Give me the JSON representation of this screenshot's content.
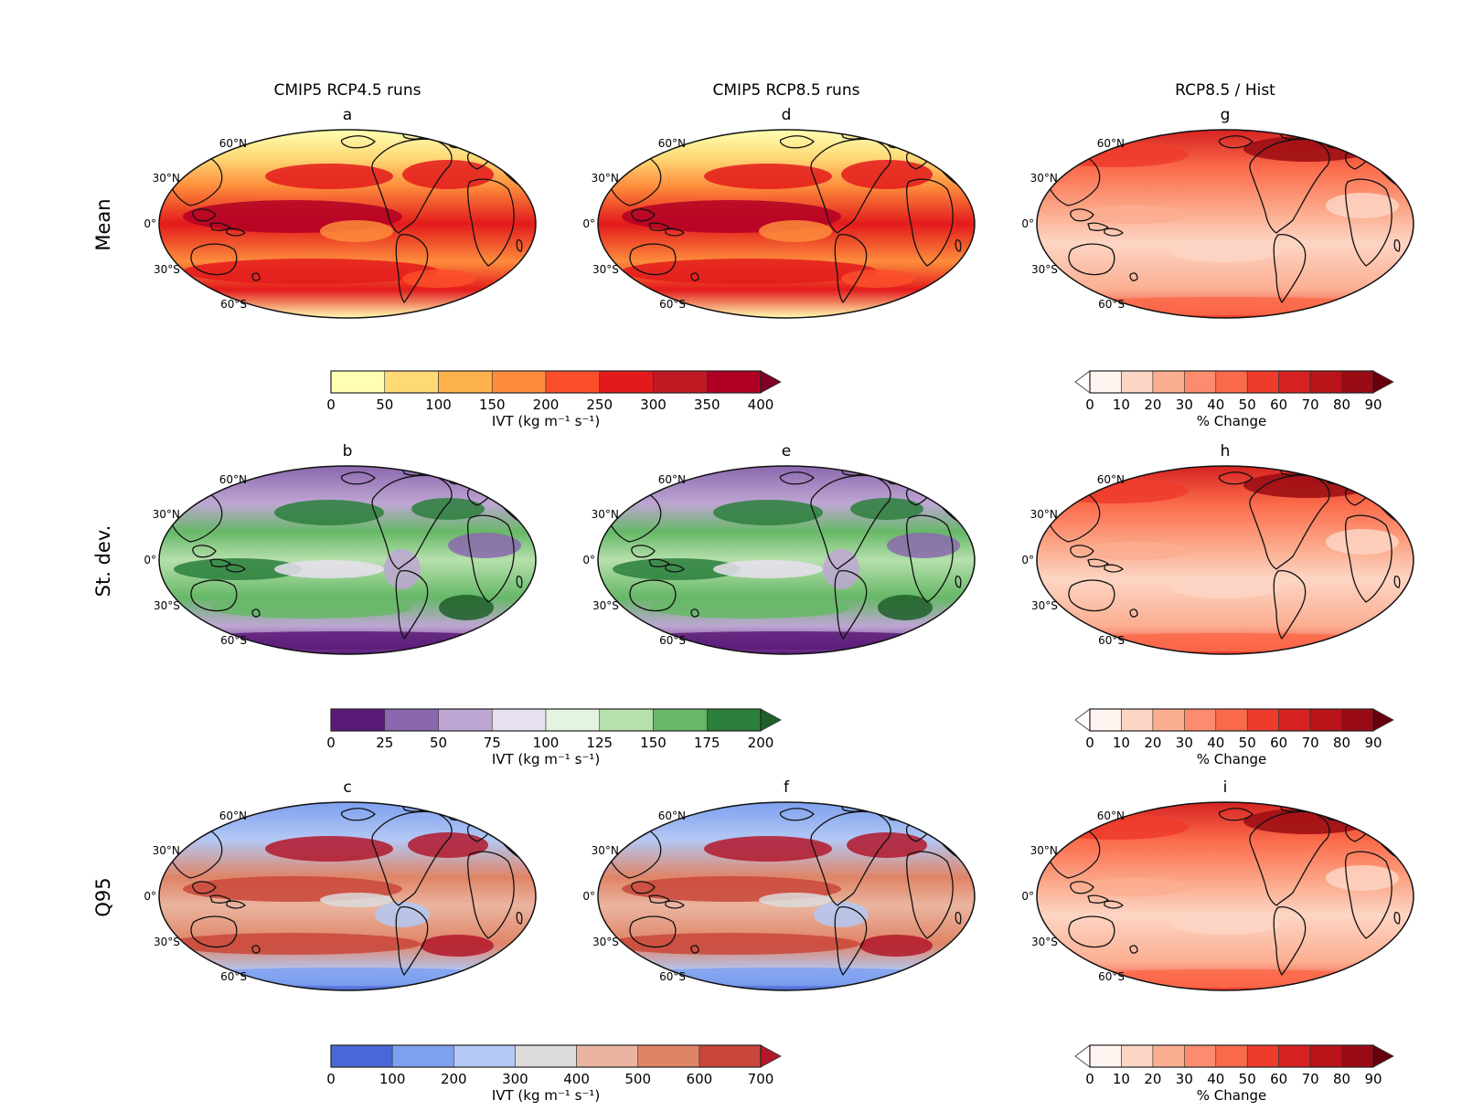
{
  "columns": [
    {
      "title": "CMIP5 RCP4.5 runs"
    },
    {
      "title": "CMIP5 RCP8.5 runs"
    },
    {
      "title": "RCP8.5 / Hist"
    }
  ],
  "rows": [
    {
      "label": "Mean"
    },
    {
      "label": "St. dev."
    },
    {
      "label": "Q95"
    }
  ],
  "panels": [
    {
      "letter": "a",
      "row": 0,
      "col": 0,
      "palette": "mean"
    },
    {
      "letter": "d",
      "row": 0,
      "col": 1,
      "palette": "mean"
    },
    {
      "letter": "g",
      "row": 0,
      "col": 2,
      "palette": "pct"
    },
    {
      "letter": "b",
      "row": 1,
      "col": 0,
      "palette": "std"
    },
    {
      "letter": "e",
      "row": 1,
      "col": 1,
      "palette": "std"
    },
    {
      "letter": "h",
      "row": 1,
      "col": 2,
      "palette": "pct"
    },
    {
      "letter": "c",
      "row": 2,
      "col": 0,
      "palette": "q95"
    },
    {
      "letter": "f",
      "row": 2,
      "col": 1,
      "palette": "q95"
    },
    {
      "letter": "i",
      "row": 2,
      "col": 2,
      "palette": "pct"
    }
  ],
  "lat_labels": [
    "60°N",
    "30°N",
    "0°",
    "30°S",
    "60°S"
  ],
  "colorbars": [
    {
      "row": 0,
      "kind": "ivt",
      "label": "IVT (kg m⁻¹ s⁻¹)",
      "ticks": [
        "0",
        "50",
        "100",
        "150",
        "200",
        "250",
        "300",
        "350",
        "400"
      ],
      "colors": [
        "#ffffb2",
        "#fed976",
        "#feb24c",
        "#fd8d3c",
        "#fc4e2a",
        "#e31a1c",
        "#c21a25",
        "#b10026",
        "#800026"
      ],
      "extend": "max"
    },
    {
      "row": 0,
      "kind": "pct",
      "label": "% Change",
      "ticks": [
        "0",
        "10",
        "20",
        "30",
        "40",
        "50",
        "60",
        "70",
        "80",
        "90"
      ],
      "colors": [
        "#fff5f0",
        "#fdd5c4",
        "#fcae91",
        "#fc8c6d",
        "#fb6a4a",
        "#ef3b2c",
        "#d52221",
        "#b81419",
        "#9a0c13",
        "#67000d"
      ],
      "extend": "both"
    },
    {
      "row": 1,
      "kind": "ivt",
      "label": "IVT (kg m⁻¹ s⁻¹)",
      "ticks": [
        "0",
        "25",
        "50",
        "75",
        "100",
        "125",
        "150",
        "175",
        "200"
      ],
      "colors": [
        "#5a1a78",
        "#8a68ae",
        "#bea6d3",
        "#e9e1f0",
        "#e5f4e1",
        "#b6e0ac",
        "#66b867",
        "#2c7f3c",
        "#1e5f2a"
      ],
      "extend": "max"
    },
    {
      "row": 1,
      "kind": "pct",
      "label": "% Change",
      "ticks": [
        "0",
        "10",
        "20",
        "30",
        "40",
        "50",
        "60",
        "70",
        "80",
        "90"
      ],
      "colors": [
        "#fff5f0",
        "#fdd5c4",
        "#fcae91",
        "#fc8c6d",
        "#fb6a4a",
        "#ef3b2c",
        "#d52221",
        "#b81419",
        "#9a0c13",
        "#67000d"
      ],
      "extend": "both"
    },
    {
      "row": 2,
      "kind": "ivt",
      "label": "IVT (kg m⁻¹ s⁻¹)",
      "ticks": [
        "0",
        "100",
        "200",
        "300",
        "400",
        "500",
        "600",
        "700"
      ],
      "colors": [
        "#4a68d8",
        "#7ea0f0",
        "#b3c8f4",
        "#dcdcdc",
        "#eab5a0",
        "#e08466",
        "#c9463a",
        "#b2182b"
      ],
      "extend": "max"
    },
    {
      "row": 2,
      "kind": "pct",
      "label": "% Change",
      "ticks": [
        "0",
        "10",
        "20",
        "30",
        "40",
        "50",
        "60",
        "70",
        "80",
        "90"
      ],
      "colors": [
        "#fff5f0",
        "#fdd5c4",
        "#fcae91",
        "#fc8c6d",
        "#fb6a4a",
        "#ef3b2c",
        "#d52221",
        "#b81419",
        "#9a0c13",
        "#67000d"
      ],
      "extend": "both"
    }
  ]
}
